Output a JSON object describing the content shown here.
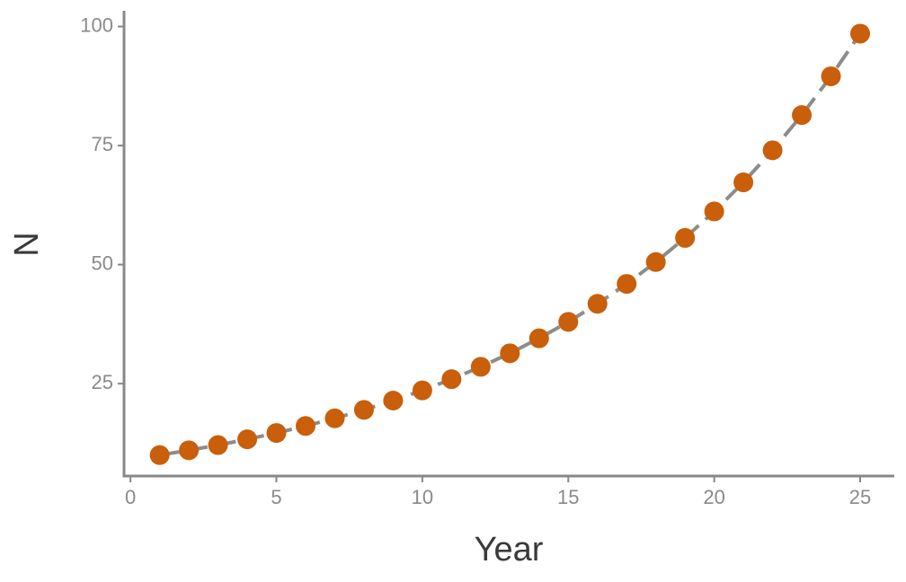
{
  "chart_data": {
    "type": "line",
    "xlabel": "Year",
    "ylabel": "N",
    "x": [
      1,
      2,
      3,
      4,
      5,
      6,
      7,
      8,
      9,
      10,
      11,
      12,
      13,
      14,
      15,
      16,
      17,
      18,
      19,
      20,
      21,
      22,
      23,
      24,
      25
    ],
    "values": [
      10,
      11,
      12.1,
      13.31,
      14.64,
      16.11,
      17.72,
      19.49,
      21.44,
      23.58,
      25.94,
      28.53,
      31.38,
      34.52,
      37.97,
      41.77,
      45.95,
      50.54,
      55.6,
      61.16,
      67.27,
      74.0,
      81.4,
      89.54,
      98.5
    ],
    "line_color": "#8c8c8c",
    "line_style": "dashed",
    "marker_color": "#c95f0b",
    "xlim": [
      -0.22,
      26.17
    ],
    "xticks": [
      0,
      5,
      10,
      15,
      20,
      25
    ],
    "ylim": [
      5.6,
      103.3
    ],
    "yticks": [
      25,
      50,
      75,
      100
    ],
    "grid": false
  }
}
